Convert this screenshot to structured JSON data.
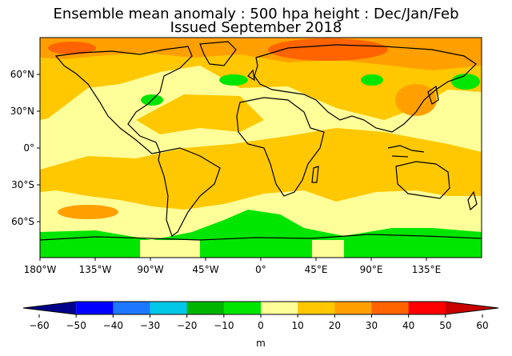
{
  "title": {
    "line1": "Ensemble mean anomaly : 500 hpa height : Dec/Jan/Feb",
    "line2": "Issued September 2018"
  },
  "map": {
    "projection": "cylindrical",
    "lat_ticks": [
      "60°N",
      "30°N",
      "0°",
      "30°S",
      "60°S"
    ],
    "lon_ticks": [
      "180°W",
      "135°W",
      "90°W",
      "45°W",
      "0°",
      "45°E",
      "90°E",
      "135°E"
    ],
    "regions": [
      "positive anomaly over North Pacific and Arctic (+10 to +40 m)",
      "negative anomaly band around Antarctica (-10 to 0 m)",
      "small negative patches over eastern North America, central Asia, Kamchatka"
    ]
  },
  "colorbar": {
    "unit": "m",
    "ticks": [
      "−60",
      "−50",
      "−40",
      "−30",
      "−20",
      "−10",
      "0",
      "10",
      "20",
      "30",
      "40",
      "50",
      "60"
    ],
    "colors": [
      "#00008b",
      "#0000ff",
      "#1e78ff",
      "#00c8e6",
      "#00b400",
      "#00e600",
      "#ffff99",
      "#ffc800",
      "#ffa000",
      "#ff6400",
      "#ff0000",
      "#c80000"
    ]
  }
}
